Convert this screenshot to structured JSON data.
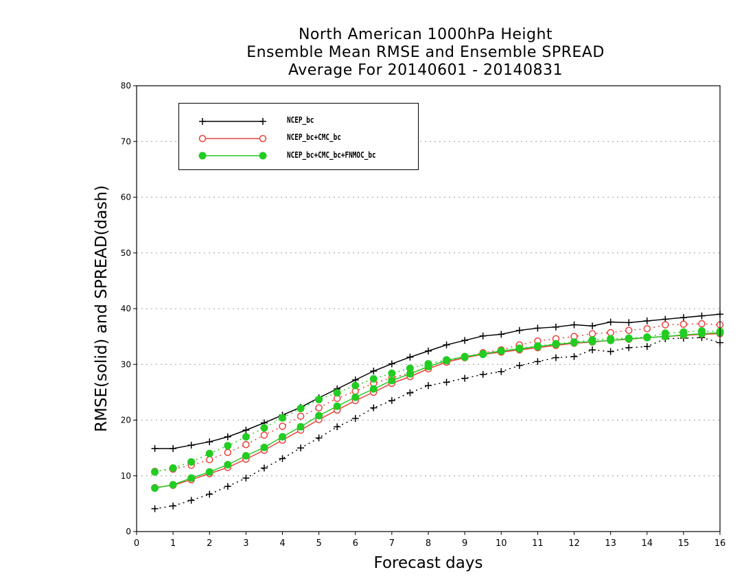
{
  "chart_data": {
    "type": "line",
    "title": [
      "North American 1000hPa Height",
      "Ensemble Mean RMSE and Ensemble SPREAD",
      "Average For 20140601 - 20140831"
    ],
    "xlabel": "Forecast days",
    "ylabel": "RMSE(solid) and SPREAD(dash)",
    "xlim": [
      0,
      16
    ],
    "ylim": [
      0,
      80
    ],
    "xticks": [
      "0",
      "1",
      "2",
      "3",
      "4",
      "5",
      "6",
      "7",
      "8",
      "9",
      "10",
      "11",
      "12",
      "13",
      "14",
      "15",
      "16"
    ],
    "yticks": [
      "0",
      "10",
      "20",
      "30",
      "40",
      "50",
      "60",
      "70",
      "80"
    ],
    "grid": "horizontal dotted",
    "legend_position": "top-left",
    "x": [
      0.5,
      1,
      1.5,
      2,
      2.5,
      3,
      3.5,
      4,
      4.5,
      5,
      5.5,
      6,
      6.5,
      7,
      7.5,
      8,
      8.5,
      9,
      9.5,
      10,
      10.5,
      11,
      11.5,
      12,
      12.5,
      13,
      13.5,
      14,
      14.5,
      15,
      15.5,
      16
    ],
    "series": [
      {
        "name": "NCEP_bc",
        "color": "#000000",
        "marker": "plus",
        "rmse": [
          14.9,
          14.9,
          15.5,
          16.1,
          17.0,
          18.2,
          19.5,
          20.9,
          22.3,
          24.0,
          25.6,
          27.2,
          28.8,
          30.1,
          31.3,
          32.4,
          33.5,
          34.3,
          35.1,
          35.4,
          36.1,
          36.5,
          36.7,
          37.1,
          36.9,
          37.6,
          37.5,
          37.8,
          38.1,
          38.4,
          38.7,
          39.0
        ],
        "spread": [
          4.1,
          4.6,
          5.6,
          6.7,
          8.1,
          9.6,
          11.4,
          13.1,
          15.0,
          16.8,
          18.8,
          20.3,
          22.2,
          23.5,
          24.9,
          26.2,
          26.8,
          27.5,
          28.2,
          28.7,
          29.8,
          30.5,
          31.2,
          31.4,
          32.6,
          32.3,
          33.0,
          33.2,
          34.6,
          34.7,
          34.8,
          33.9
        ]
      },
      {
        "name": "NCEP_bc+CMC_bc",
        "color": "#e8403a",
        "marker": "open-circle",
        "rmse": [
          7.9,
          8.3,
          9.3,
          10.4,
          11.5,
          13.0,
          14.6,
          16.4,
          18.2,
          20.1,
          21.8,
          23.5,
          25.0,
          26.6,
          27.8,
          29.2,
          30.4,
          31.2,
          31.8,
          32.2,
          32.6,
          33.0,
          33.4,
          33.8,
          34.0,
          34.3,
          34.5,
          34.8,
          35.0,
          35.2,
          35.4,
          35.5
        ],
        "spread": [
          10.8,
          11.2,
          11.9,
          12.9,
          14.2,
          15.6,
          17.3,
          18.9,
          20.7,
          22.2,
          23.9,
          25.2,
          26.6,
          27.6,
          28.4,
          29.6,
          30.6,
          31.3,
          32.1,
          32.6,
          33.5,
          34.2,
          34.6,
          35.0,
          35.5,
          35.7,
          36.1,
          36.4,
          37.1,
          37.2,
          37.3,
          37.1
        ]
      },
      {
        "name": "NCEP_bc+CMC_bc+FNMOC_bc",
        "color": "#22cc22",
        "marker": "filled-circle",
        "rmse": [
          7.8,
          8.4,
          9.6,
          10.7,
          12.0,
          13.6,
          15.1,
          17.0,
          18.8,
          20.8,
          22.5,
          24.1,
          25.6,
          27.1,
          28.3,
          29.6,
          30.7,
          31.4,
          31.9,
          32.4,
          32.8,
          33.2,
          33.6,
          33.9,
          34.1,
          34.3,
          34.6,
          34.8,
          35.0,
          35.3,
          35.5,
          35.7
        ],
        "spread": [
          10.7,
          11.4,
          12.5,
          14.0,
          15.4,
          17.0,
          18.6,
          20.4,
          22.1,
          23.7,
          24.9,
          26.2,
          27.4,
          28.4,
          29.3,
          30.1,
          30.8,
          31.3,
          31.8,
          32.4,
          32.9,
          33.3,
          33.7,
          34.0,
          34.4,
          34.6,
          34.7,
          34.9,
          35.6,
          35.8,
          36.0,
          35.9
        ]
      }
    ]
  }
}
